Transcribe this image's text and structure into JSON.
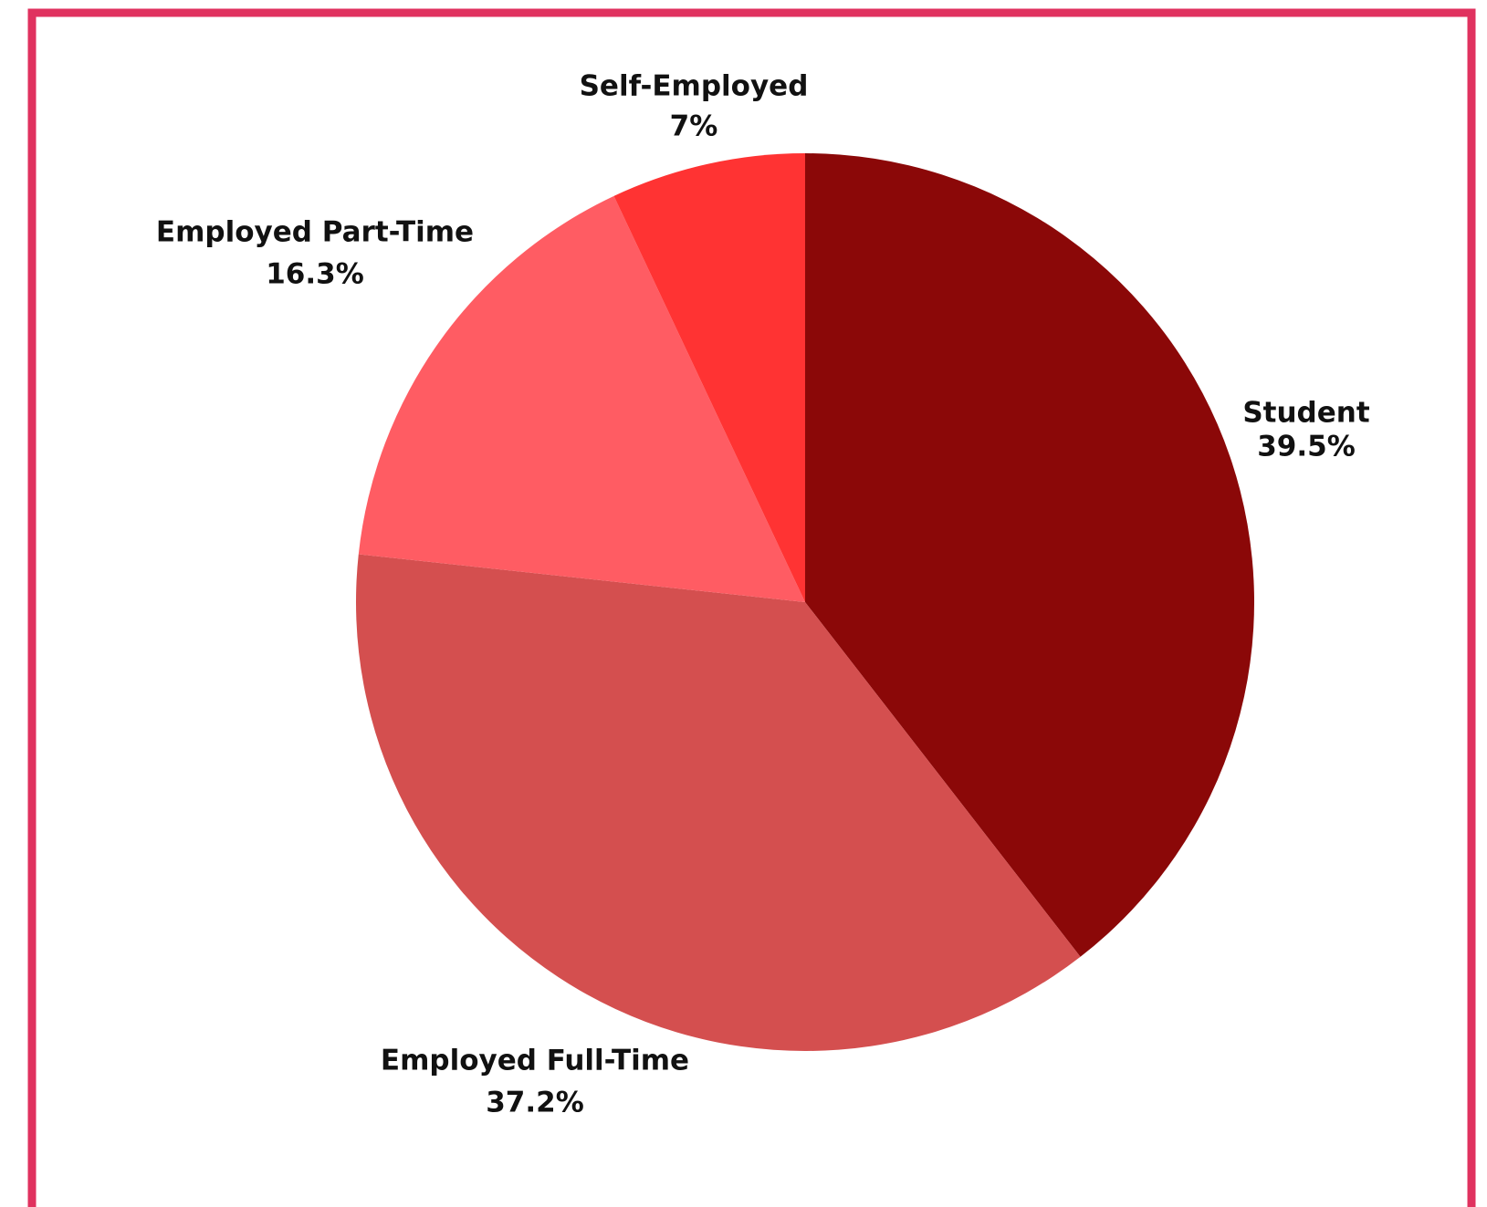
{
  "chart_data": {
    "type": "pie",
    "categories": [
      "Student",
      "Employed Full-Time",
      "Employed Part-Time",
      "Self-Employed"
    ],
    "values": [
      39.5,
      37.2,
      16.3,
      7
    ],
    "value_labels": [
      "39.5%",
      "37.2%",
      "16.3%",
      "7%"
    ],
    "colors": [
      "#8b0808",
      "#d44f4f",
      "#ff5c63",
      "#ff3333"
    ]
  }
}
